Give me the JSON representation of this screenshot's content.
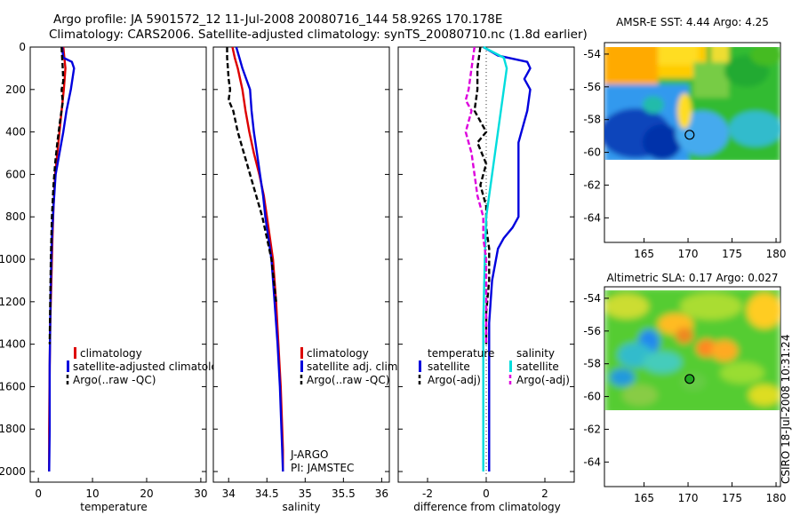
{
  "figure": {
    "title_line1": "Argo profile: JA 5901572_12 11-Jul-2008 20080716_144 58.926S 170.178E",
    "title_line2": "Climatology: CARS2006. Satellite-adjusted climatology: synTS_20080710.nc (1.8d earlier)",
    "side_credit": "CSIRO 18-Jul-2008 10:31:24"
  },
  "chart_data": [
    {
      "type": "line",
      "xlabel": "temperature",
      "xlim": [
        -1.5,
        31
      ],
      "ylim": [
        0,
        2050
      ],
      "y_reversed": true,
      "xticks": [
        0,
        10,
        20,
        30
      ],
      "yticks": [
        0,
        200,
        400,
        600,
        800,
        1000,
        1200,
        1400,
        1600,
        1800,
        2000
      ],
      "legend": {
        "placement": "lower-right",
        "entries": [
          "climatology",
          "satellite-adjusted climatology",
          "Argo(..raw -QC)"
        ]
      },
      "series": [
        {
          "name": "climatology",
          "color": "#dd0000",
          "style": "solid",
          "x": [
            4.6,
            4.8,
            5.0,
            4.7,
            4.3,
            3.9,
            3.5,
            3.1,
            2.8,
            2.6,
            2.4,
            2.2,
            2.1,
            2.0,
            2.0
          ],
          "y": [
            0,
            50,
            100,
            200,
            300,
            400,
            500,
            600,
            750,
            900,
            1100,
            1300,
            1500,
            1800,
            2000
          ]
        },
        {
          "name": "satellite-adjusted climatology",
          "color": "#0000dd",
          "style": "solid",
          "x": [
            4.4,
            4.6,
            6.2,
            6.6,
            6.0,
            5.2,
            4.6,
            3.9,
            3.2,
            2.8,
            2.5,
            2.3,
            2.2,
            2.1,
            2.1,
            2.0
          ],
          "y": [
            0,
            50,
            70,
            100,
            200,
            300,
            400,
            500,
            600,
            750,
            900,
            1100,
            1300,
            1500,
            1800,
            2000
          ]
        },
        {
          "name": "Argo(..raw -QC)",
          "color": "#000000",
          "style": "dashed",
          "x": [
            4.3,
            4.4,
            4.5,
            4.6,
            4.3,
            4.5,
            4.0,
            3.5,
            3.1,
            2.8,
            2.5,
            2.3,
            2.2,
            2.1
          ],
          "y": [
            0,
            50,
            100,
            160,
            200,
            260,
            350,
            450,
            550,
            650,
            800,
            1000,
            1200,
            1400
          ]
        }
      ]
    },
    {
      "type": "line",
      "xlabel": "salinity",
      "xlim": [
        33.8,
        36.1
      ],
      "ylim": [
        0,
        2050
      ],
      "y_reversed": true,
      "xticks": [
        34,
        34.5,
        35,
        35.5,
        36
      ],
      "yticks": [
        0,
        200,
        400,
        600,
        800,
        1000,
        1200,
        1400,
        1600,
        1800,
        2000
      ],
      "legend": {
        "placement": "lower-right",
        "entries": [
          "climatology",
          "satellite adj. clim.",
          "Argo(..raw -QC)"
        ]
      },
      "annotations": [
        "J-ARGO",
        "PI: JAMSTEC"
      ],
      "series": [
        {
          "name": "climatology",
          "color": "#dd0000",
          "style": "solid",
          "x": [
            34.05,
            34.08,
            34.12,
            34.15,
            34.18,
            34.22,
            34.27,
            34.33,
            34.4,
            34.46,
            34.5,
            34.54,
            34.58,
            34.62,
            34.65,
            34.68,
            34.7,
            34.71,
            34.71
          ],
          "y": [
            0,
            50,
            100,
            150,
            200,
            300,
            400,
            500,
            600,
            700,
            800,
            900,
            1000,
            1200,
            1400,
            1600,
            1800,
            1900,
            2000
          ]
        },
        {
          "name": "satellite adj. clim.",
          "color": "#0000dd",
          "style": "solid",
          "x": [
            34.1,
            34.14,
            34.18,
            34.23,
            34.28,
            34.3,
            34.33,
            34.37,
            34.41,
            34.45,
            34.48,
            34.52,
            34.56,
            34.6,
            34.64,
            34.67,
            34.69,
            34.7,
            34.71
          ],
          "y": [
            0,
            50,
            100,
            150,
            200,
            300,
            400,
            500,
            600,
            700,
            800,
            900,
            1000,
            1200,
            1400,
            1600,
            1800,
            1900,
            2000
          ]
        },
        {
          "name": "Argo(..raw -QC)",
          "color": "#000000",
          "style": "dashed",
          "x": [
            33.98,
            33.98,
            33.99,
            34.0,
            34.02,
            34.0,
            34.06,
            34.12,
            34.2,
            34.28,
            34.36,
            34.44,
            34.5,
            34.56,
            34.62
          ],
          "y": [
            0,
            50,
            100,
            150,
            200,
            250,
            300,
            400,
            500,
            600,
            700,
            800,
            900,
            1000,
            1200
          ]
        }
      ]
    },
    {
      "type": "line",
      "xlabel": "difference from climatology",
      "xlim": [
        -3,
        3
      ],
      "ylim": [
        0,
        2050
      ],
      "y_reversed": true,
      "xticks": [
        -2,
        0,
        2
      ],
      "yticks": [
        0,
        200,
        400,
        600,
        800,
        1000,
        1200,
        1400,
        1600,
        1800,
        2000
      ],
      "legend": {
        "placement": "lower-center",
        "headers": [
          "temperature",
          "salinity"
        ],
        "entries": [
          "satellite",
          "Argo(-adj)",
          "satellite",
          "Argo(-adj)"
        ]
      },
      "series": [
        {
          "name": "satellite",
          "group": "temperature",
          "color": "#0000dd",
          "style": "solid",
          "x": [
            -0.1,
            0.4,
            1.4,
            1.5,
            1.3,
            1.5,
            1.4,
            1.2,
            1.1,
            1.1,
            1.1,
            1.1,
            1.1,
            1.1,
            1.1,
            1.1,
            0.9,
            0.6,
            0.4,
            0.2,
            0.1,
            0.1,
            0.1,
            0.1
          ],
          "y": [
            0,
            40,
            70,
            100,
            150,
            200,
            300,
            400,
            450,
            500,
            550,
            600,
            650,
            700,
            750,
            800,
            850,
            900,
            950,
            1100,
            1300,
            1600,
            1900,
            2000
          ]
        },
        {
          "name": "Argo(-adj)",
          "group": "temperature",
          "color": "#000000",
          "style": "dashed",
          "x": [
            -0.2,
            -0.3,
            -0.3,
            -0.4,
            0.0,
            -0.3,
            0.0,
            -0.2,
            0.0,
            0.0,
            0.1,
            0.1,
            0.0,
            0.0
          ],
          "y": [
            0,
            100,
            200,
            300,
            400,
            450,
            550,
            650,
            750,
            850,
            950,
            1100,
            1250,
            1400
          ]
        },
        {
          "name": "satellite",
          "group": "salinity",
          "color": "#00dddd",
          "style": "solid",
          "x": [
            -0.1,
            0.6,
            0.7,
            0.6,
            0.5,
            0.4,
            0.3,
            0.2,
            0.1,
            0.0,
            -0.05,
            -0.1,
            -0.1,
            -0.1
          ],
          "y": [
            0,
            50,
            100,
            200,
            300,
            400,
            500,
            600,
            700,
            800,
            1000,
            1300,
            1600,
            2000
          ]
        },
        {
          "name": "Argo(-adj)",
          "group": "salinity",
          "color": "#dd00dd",
          "style": "dashed",
          "x": [
            -0.4,
            -0.5,
            -0.6,
            -0.7,
            -0.5,
            -0.7,
            -0.5,
            -0.4,
            -0.3,
            -0.1,
            -0.1,
            0.0,
            0.0,
            0.0
          ],
          "y": [
            0,
            100,
            200,
            250,
            300,
            400,
            500,
            600,
            700,
            800,
            900,
            1000,
            1200,
            1400
          ]
        }
      ]
    },
    {
      "type": "heatmap",
      "title": "AMSR-E SST: 4.44  Argo: 4.25",
      "xlim": [
        160.5,
        180.5
      ],
      "ylim": [
        -65.5,
        -53.3
      ],
      "xticks": [
        165,
        170,
        175,
        180
      ],
      "yticks": [
        -54,
        -56,
        -58,
        -60,
        -62,
        -64
      ],
      "data_extent": {
        "lon": [
          160.5,
          180.5
        ],
        "lat": [
          -60.2,
          -53.3
        ]
      },
      "marker": {
        "lon": 170.178,
        "lat": -58.926,
        "fill": "none"
      }
    },
    {
      "type": "heatmap",
      "title": "Altimetric SLA: 0.17  Argo: 0.027",
      "xlim": [
        160.5,
        180.5
      ],
      "ylim": [
        -65.5,
        -53.3
      ],
      "xticks": [
        165,
        170,
        175,
        180
      ],
      "yticks": [
        -54,
        -56,
        -58,
        -60,
        -62,
        -64
      ],
      "data_extent": {
        "lon": [
          160.5,
          180.5
        ],
        "lat": [
          -60.2,
          -53.3
        ]
      },
      "marker": {
        "lon": 170.178,
        "lat": -58.926,
        "fill": "#22aa22"
      }
    }
  ]
}
